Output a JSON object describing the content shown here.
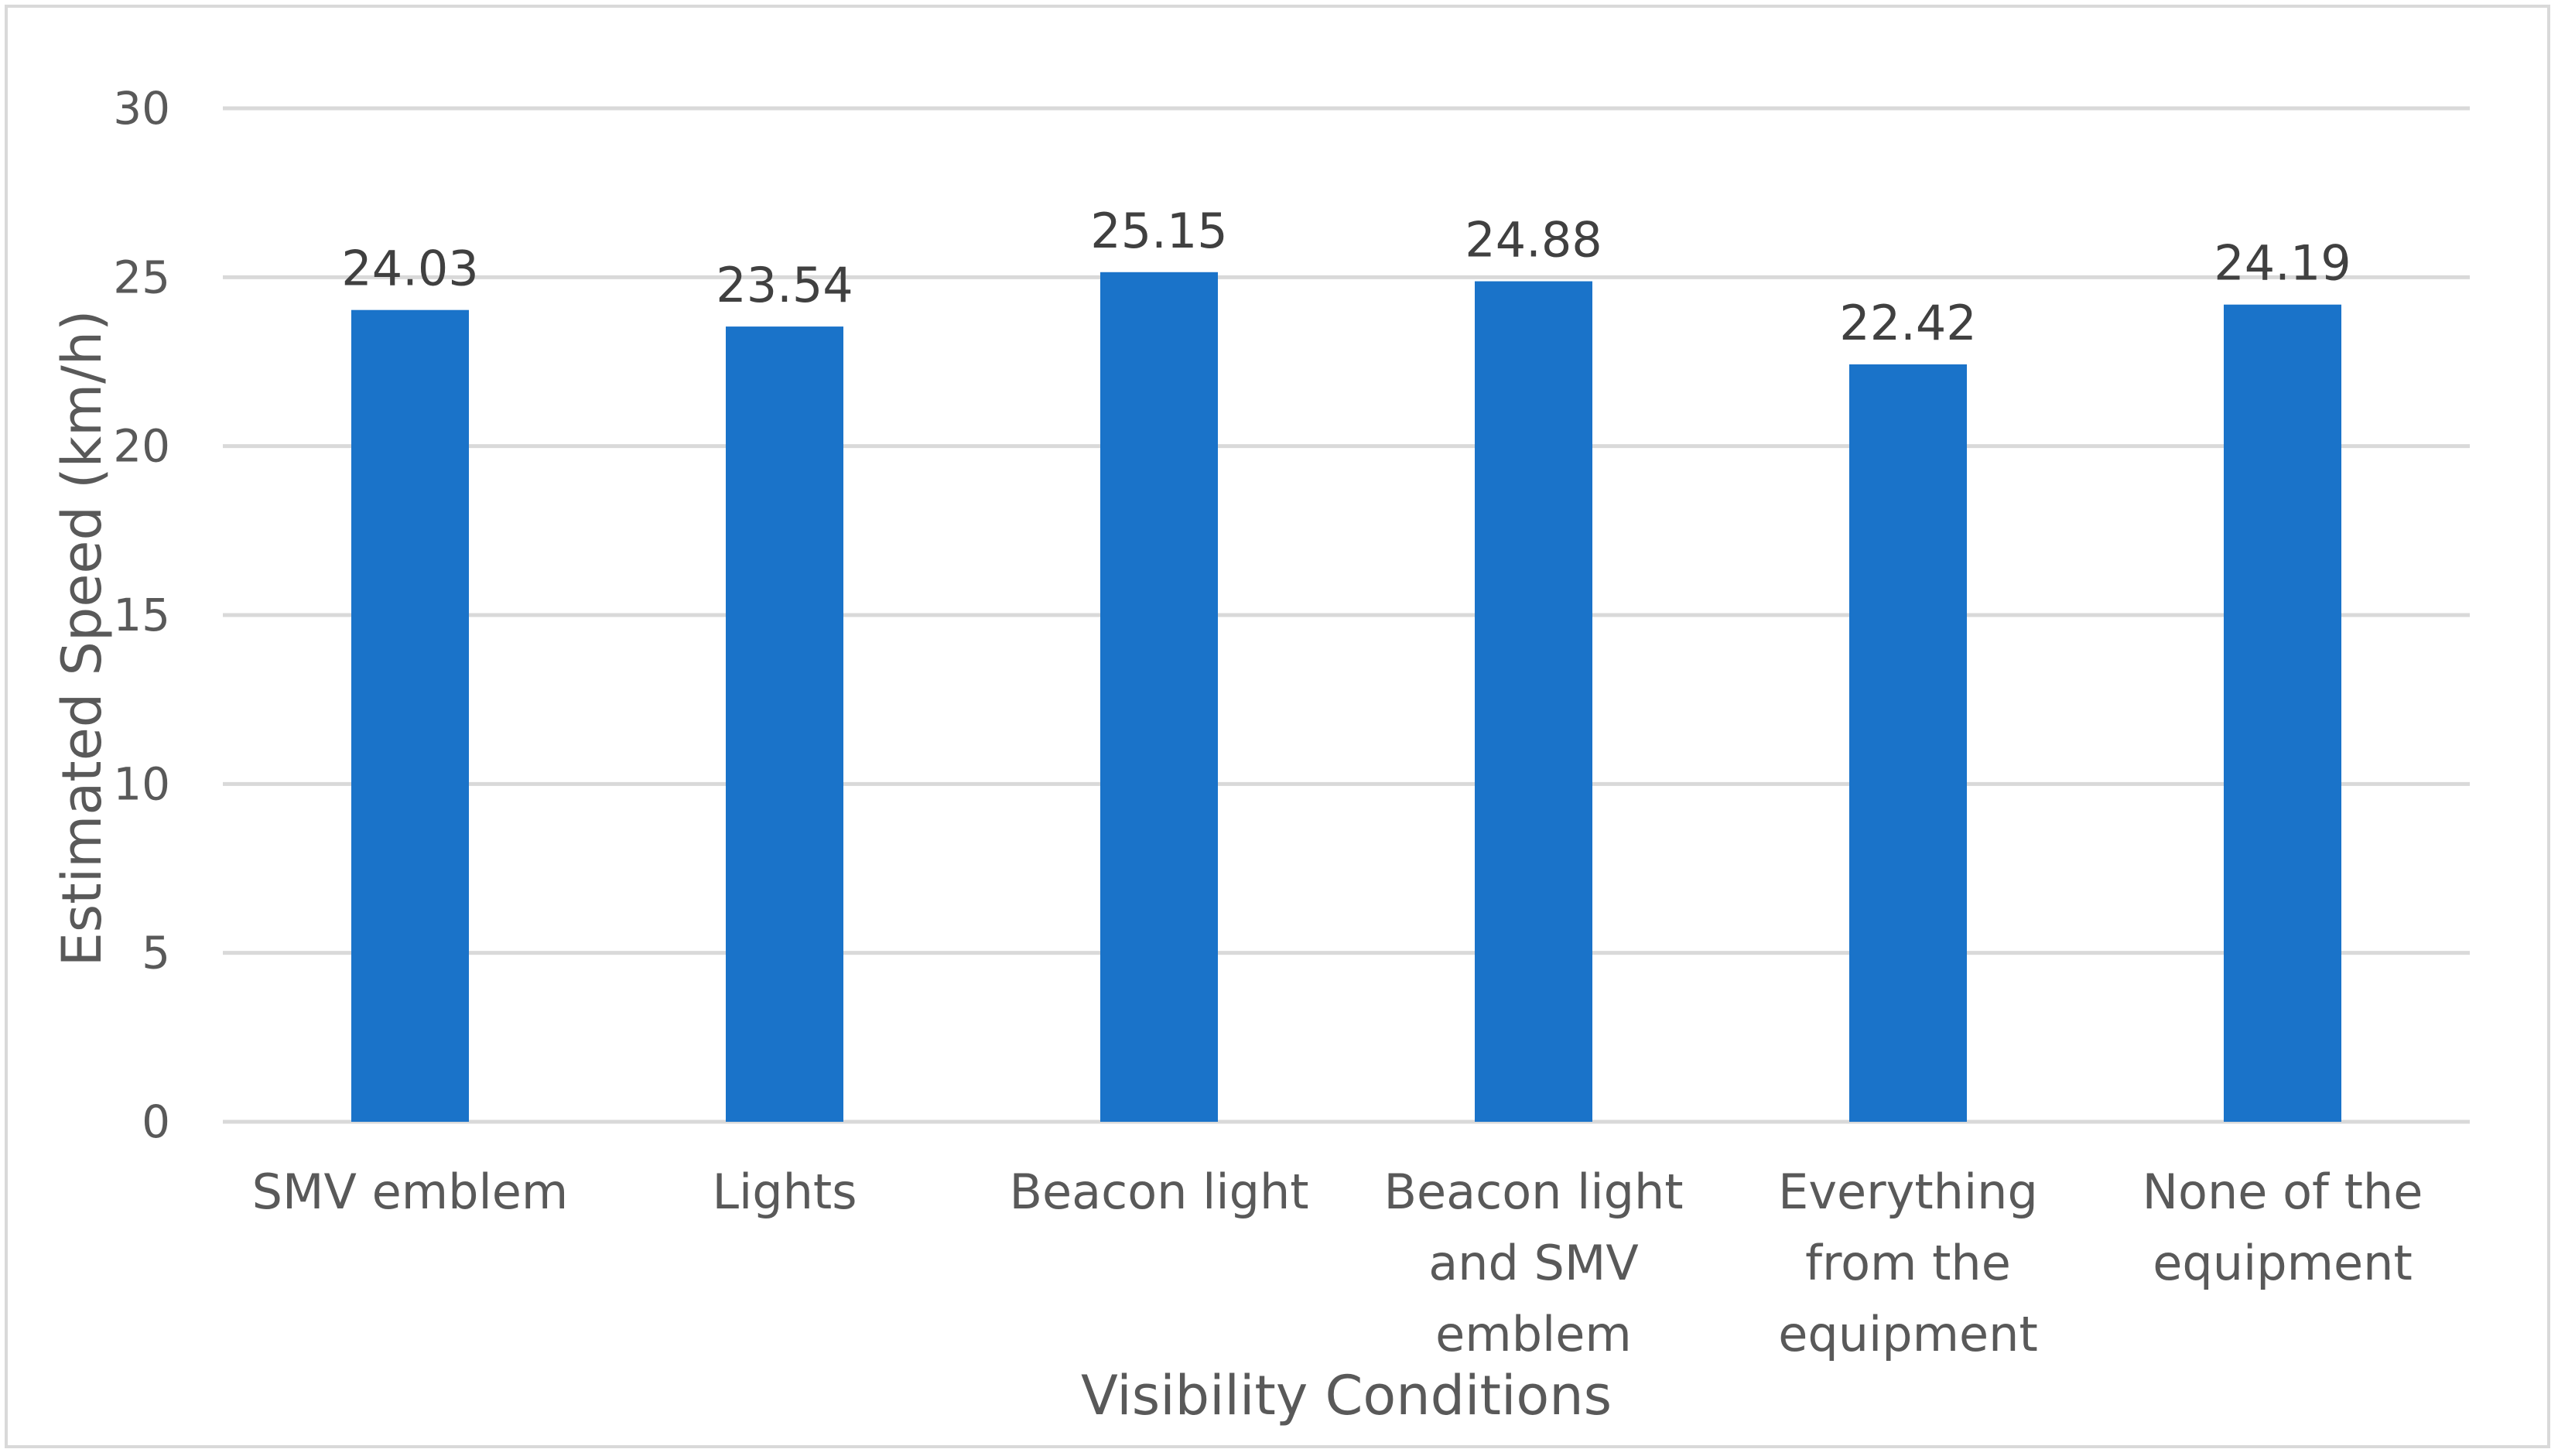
{
  "chart_data": {
    "type": "bar",
    "title": "",
    "xlabel": "Visibility Conditions",
    "ylabel": "Estimated Speed (km/h)",
    "ylim": [
      0,
      30
    ],
    "yticks": [
      0,
      5,
      10,
      15,
      20,
      25,
      30
    ],
    "grid": true,
    "legend": "none",
    "categories": [
      "SMV emblem",
      "Lights",
      "Beacon light",
      "Beacon light and SMV emblem",
      "Everything from the equipment",
      "None of the equipment"
    ],
    "category_lines": [
      [
        "SMV emblem"
      ],
      [
        "Lights"
      ],
      [
        "Beacon light"
      ],
      [
        "Beacon light",
        "and SMV",
        "emblem"
      ],
      [
        "Everything",
        "from the",
        "equipment"
      ],
      [
        "None of the",
        "equipment"
      ]
    ],
    "values": [
      24.03,
      23.54,
      25.15,
      24.88,
      22.42,
      24.19
    ],
    "value_labels": [
      "24.03",
      "23.54",
      "25.15",
      "24.88",
      "22.42",
      "24.19"
    ],
    "bar_color": "#1a73c9",
    "gridline_color": "#d9d9d9",
    "text_color": "#595959"
  }
}
